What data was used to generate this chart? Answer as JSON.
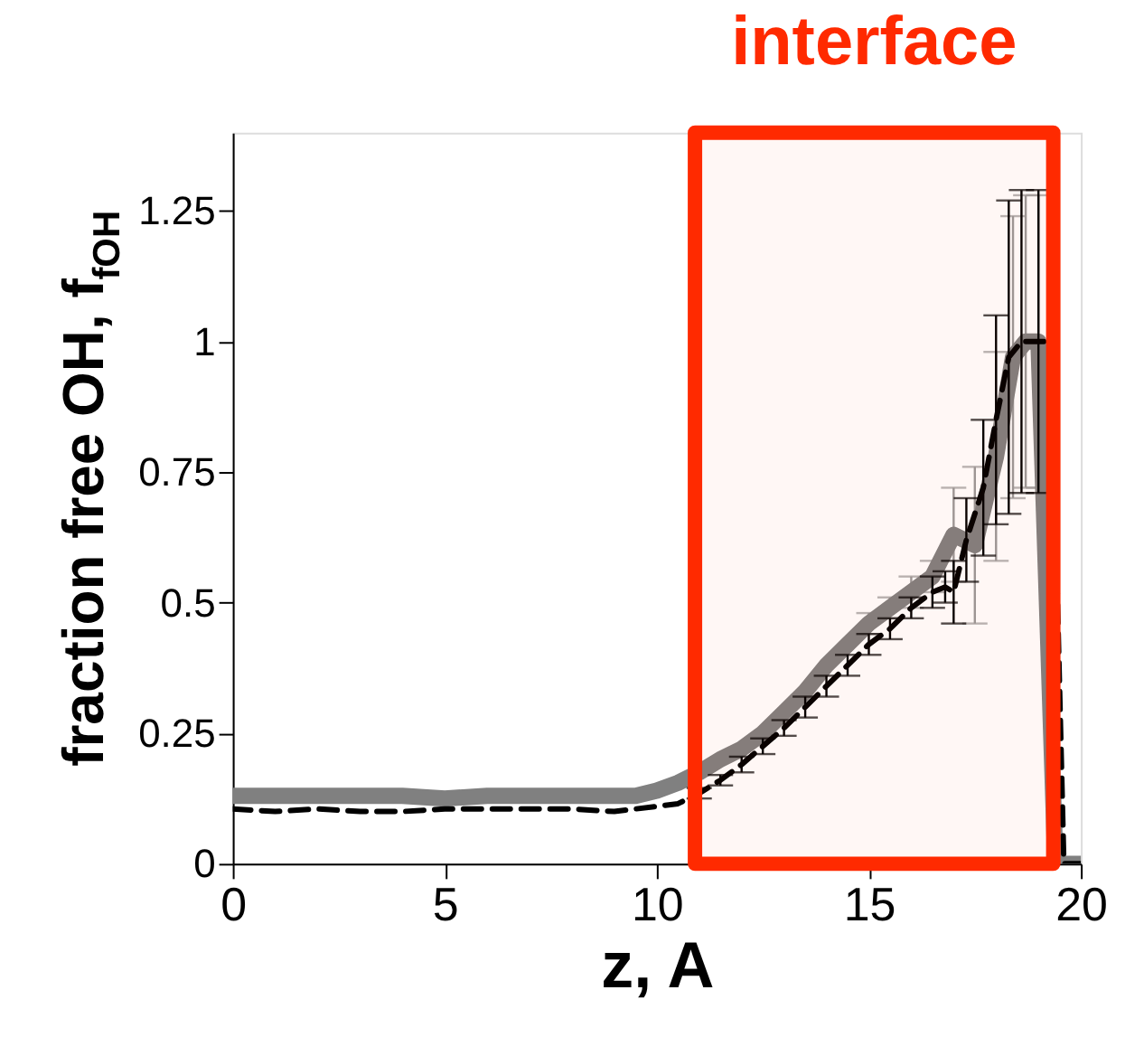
{
  "chart_data": {
    "type": "line",
    "xlabel": "z, A",
    "ylabel": "fraction free OH, f$_{fOH}$",
    "xlim": [
      0,
      20
    ],
    "xticks": [
      0,
      5,
      10,
      15,
      20
    ],
    "ylim": [
      0,
      1.4
    ],
    "yticks": [
      0,
      0.25,
      0.5,
      0.75,
      1,
      1.25
    ],
    "grid": false,
    "legend": false,
    "marker": "none",
    "series": [
      {
        "color": "#808080",
        "line_style": "solid",
        "x": [
          0,
          1,
          2,
          3,
          4,
          5,
          6,
          7,
          8,
          9,
          9.5,
          10,
          10.5,
          11,
          11.5,
          12,
          12.5,
          13,
          13.5,
          14,
          14.5,
          15,
          15.5,
          16,
          16.5,
          17,
          17.5,
          18,
          18.4,
          18.7,
          19,
          19.4,
          20
        ],
        "values": [
          0.13,
          0.13,
          0.13,
          0.13,
          0.13,
          0.125,
          0.13,
          0.13,
          0.13,
          0.13,
          0.13,
          0.14,
          0.155,
          0.175,
          0.2,
          0.22,
          0.25,
          0.29,
          0.33,
          0.38,
          0.42,
          0.46,
          0.49,
          0.52,
          0.55,
          0.63,
          0.61,
          0.78,
          0.97,
          1.0,
          1.0,
          0.0,
          0.0
        ],
        "errors": [
          null,
          null,
          null,
          null,
          null,
          null,
          null,
          null,
          null,
          null,
          null,
          null,
          null,
          null,
          null,
          null,
          null,
          null,
          null,
          null,
          null,
          0.02,
          0.02,
          0.03,
          0.03,
          0.09,
          0.15,
          0.2,
          0.27,
          0.28,
          0.28,
          null,
          null
        ]
      },
      {
        "color": "#000000",
        "line_style": "dashed",
        "x": [
          0,
          1,
          2,
          3,
          4,
          5,
          6,
          7,
          8,
          9,
          9.5,
          10,
          10.5,
          11,
          11.5,
          12,
          12.5,
          13,
          13.5,
          14,
          14.5,
          15,
          15.5,
          16,
          16.5,
          16.8,
          17,
          17.3,
          17.7,
          18,
          18.3,
          18.6,
          19,
          19.3,
          19.6,
          20
        ],
        "values": [
          0.105,
          0.1,
          0.105,
          0.1,
          0.1,
          0.105,
          0.105,
          0.105,
          0.105,
          0.1,
          0.105,
          0.11,
          0.115,
          0.135,
          0.16,
          0.19,
          0.225,
          0.26,
          0.3,
          0.34,
          0.38,
          0.42,
          0.45,
          0.49,
          0.52,
          0.53,
          0.52,
          0.62,
          0.72,
          0.85,
          0.97,
          1.0,
          1.0,
          1.0,
          0.0,
          0.0
        ],
        "errors": [
          null,
          null,
          null,
          null,
          null,
          null,
          null,
          null,
          null,
          null,
          null,
          null,
          null,
          0.01,
          0.01,
          0.015,
          0.015,
          0.015,
          0.02,
          0.02,
          0.02,
          0.02,
          0.02,
          0.02,
          0.03,
          0.03,
          0.06,
          0.08,
          0.13,
          0.2,
          0.3,
          0.29,
          0.29,
          null,
          null,
          null
        ]
      }
    ],
    "bands": [
      {
        "axis": "x",
        "from": 10.9,
        "to": 19.35,
        "label": "interface",
        "color": "#ff2a00"
      }
    ]
  }
}
